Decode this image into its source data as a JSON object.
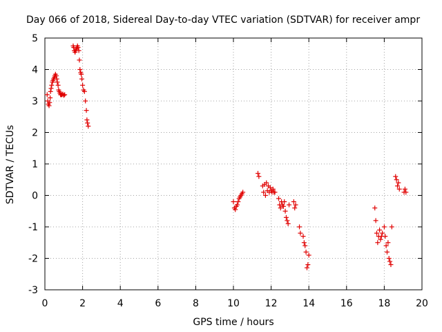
{
  "chart_data": {
    "type": "scatter",
    "title": "Day 066 of 2018, Sidereal Day-to-day VTEC variation (SDTVAR) for receiver ampr",
    "xlabel": "GPS time / hours",
    "ylabel": "SDTVAR / TECUs",
    "xlim": [
      0,
      20
    ],
    "ylim": [
      -3,
      5
    ],
    "xticks": [
      "0",
      "2",
      "4",
      "6",
      "8",
      "10",
      "12",
      "14",
      "16",
      "18",
      "20"
    ],
    "yticks": [
      "-3",
      "-2",
      "-1",
      "0",
      "1",
      "2",
      "3",
      "4",
      "5"
    ],
    "grid": true,
    "marker": "+",
    "color": "#e00000",
    "series": [
      {
        "name": "SDTVAR",
        "x": [
          0.12,
          0.15,
          0.18,
          0.22,
          0.25,
          0.28,
          0.3,
          0.33,
          0.36,
          0.4,
          0.43,
          0.46,
          0.5,
          0.53,
          0.56,
          0.6,
          0.63,
          0.66,
          0.7,
          0.73,
          0.76,
          0.8,
          0.83,
          0.86,
          0.9,
          0.95,
          1.0,
          1.05,
          1.5,
          1.53,
          1.56,
          1.6,
          1.63,
          1.66,
          1.7,
          1.73,
          1.76,
          1.8,
          1.83,
          1.86,
          1.9,
          1.93,
          1.96,
          2.0,
          2.05,
          2.1,
          2.15,
          2.2,
          2.23,
          2.26,
          2.3,
          10.0,
          10.05,
          10.1,
          10.15,
          10.2,
          10.25,
          10.3,
          10.35,
          10.4,
          10.45,
          10.5,
          11.3,
          11.35,
          11.55,
          11.6,
          11.65,
          11.7,
          11.75,
          11.8,
          11.85,
          11.9,
          11.95,
          12.0,
          12.05,
          12.1,
          12.15,
          12.2,
          12.4,
          12.45,
          12.5,
          12.55,
          12.6,
          12.65,
          12.7,
          12.75,
          12.8,
          12.85,
          12.9,
          12.95,
          13.2,
          13.25,
          13.3,
          13.5,
          13.55,
          13.7,
          13.75,
          13.8,
          13.85,
          13.9,
          13.95,
          14.0,
          17.5,
          17.55,
          17.6,
          17.65,
          17.7,
          17.75,
          17.8,
          17.85,
          17.9,
          18.0,
          18.05,
          18.1,
          18.15,
          18.2,
          18.25,
          18.3,
          18.35,
          18.4,
          18.6,
          18.65,
          18.7,
          18.75,
          18.8,
          19.05,
          19.1,
          19.15
        ],
        "y": [
          3.2,
          3.0,
          2.9,
          2.85,
          2.95,
          3.1,
          3.3,
          3.4,
          3.5,
          3.6,
          3.65,
          3.7,
          3.75,
          3.8,
          3.85,
          3.8,
          3.7,
          3.6,
          3.5,
          3.35,
          3.3,
          3.25,
          3.2,
          3.2,
          3.2,
          3.22,
          3.18,
          3.2,
          4.75,
          4.7,
          4.6,
          4.55,
          4.6,
          4.65,
          4.7,
          4.75,
          4.7,
          4.6,
          4.3,
          4.0,
          3.9,
          3.85,
          3.7,
          3.5,
          3.35,
          3.3,
          3.0,
          2.7,
          2.4,
          2.3,
          2.2,
          -0.2,
          -0.4,
          -0.45,
          -0.35,
          -0.3,
          -0.2,
          -0.1,
          -0.05,
          0.0,
          0.05,
          0.1,
          0.7,
          0.6,
          0.3,
          0.1,
          0.35,
          0.0,
          0.4,
          0.15,
          0.3,
          0.1,
          0.25,
          0.15,
          0.1,
          0.2,
          0.1,
          0.1,
          -0.1,
          -0.3,
          -0.4,
          -0.2,
          -0.3,
          -0.35,
          -0.2,
          -0.5,
          -0.7,
          -0.8,
          -0.9,
          -0.3,
          -0.2,
          -0.4,
          -0.3,
          -1.0,
          -1.2,
          -1.3,
          -1.5,
          -1.6,
          -1.8,
          -2.3,
          -2.2,
          -1.9,
          -0.4,
          -0.8,
          -1.2,
          -1.5,
          -1.3,
          -1.1,
          -1.4,
          -1.3,
          -1.2,
          -1.0,
          -1.3,
          -1.6,
          -1.8,
          -1.5,
          -2.0,
          -2.1,
          -2.2,
          -1.0,
          0.6,
          0.5,
          0.3,
          0.4,
          0.2,
          0.1,
          0.2,
          0.1
        ]
      }
    ]
  }
}
